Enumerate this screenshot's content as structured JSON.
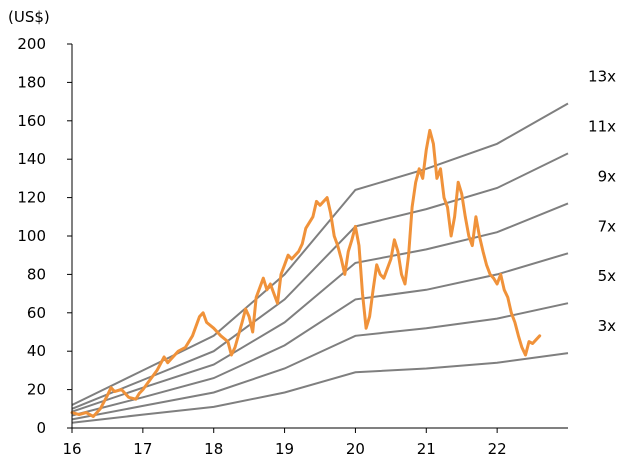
{
  "chart_data": {
    "type": "line",
    "title": "",
    "ylabel": "(US$)",
    "xlabel": "",
    "xlim": [
      16,
      23
    ],
    "ylim": [
      0,
      200
    ],
    "x_ticks": [
      "16",
      "17",
      "18",
      "19",
      "20",
      "21",
      "22"
    ],
    "y_ticks": [
      "0",
      "20",
      "40",
      "60",
      "80",
      "100",
      "120",
      "140",
      "160",
      "180",
      "200"
    ],
    "grid": false,
    "legend": "none",
    "colors": {
      "price": "#f0923a",
      "band": "#7f7f7f"
    },
    "bands": [
      {
        "name": "13x",
        "x": [
          16,
          17,
          18,
          19,
          20,
          21,
          22,
          23
        ],
        "values": [
          12,
          30,
          48,
          80,
          124,
          135,
          148,
          169
        ]
      },
      {
        "name": "11x",
        "x": [
          16,
          17,
          18,
          19,
          20,
          21,
          22,
          23
        ],
        "values": [
          10,
          25,
          40,
          67,
          105,
          114,
          125,
          143
        ]
      },
      {
        "name": "9x",
        "x": [
          16,
          17,
          18,
          19,
          20,
          21,
          22,
          23
        ],
        "values": [
          8.5,
          21,
          33,
          55,
          86,
          93,
          102,
          117
        ]
      },
      {
        "name": "7x",
        "x": [
          16,
          17,
          18,
          19,
          20,
          21,
          22,
          23
        ],
        "values": [
          6.5,
          16,
          26,
          43,
          67,
          72,
          80,
          91
        ]
      },
      {
        "name": "5x",
        "x": [
          16,
          17,
          18,
          19,
          20,
          21,
          22,
          23
        ],
        "values": [
          4.5,
          11.5,
          18.5,
          31,
          48,
          52,
          57,
          65
        ]
      },
      {
        "name": "3x",
        "x": [
          16,
          17,
          18,
          19,
          20,
          21,
          22,
          23
        ],
        "values": [
          2.7,
          7,
          11,
          18.5,
          29,
          31,
          34,
          39
        ]
      }
    ],
    "series": [
      {
        "x": [
          16.0,
          16.1,
          16.2,
          16.3,
          16.4,
          16.5,
          16.55,
          16.6,
          16.7,
          16.8,
          16.9,
          16.95,
          17.0,
          17.1,
          17.2,
          17.3,
          17.35,
          17.4,
          17.5,
          17.6,
          17.7,
          17.8,
          17.85,
          17.9,
          18.0,
          18.1,
          18.2,
          18.25,
          18.3,
          18.4,
          18.45,
          18.5,
          18.55,
          18.6,
          18.7,
          18.75,
          18.8,
          18.85,
          18.9,
          18.95,
          19.0,
          19.05,
          19.1,
          19.2,
          19.25,
          19.3,
          19.4,
          19.45,
          19.5,
          19.6,
          19.65,
          19.7,
          19.75,
          19.8,
          19.85,
          19.9,
          19.95,
          20.0,
          20.05,
          20.1,
          20.15,
          20.2,
          20.25,
          20.3,
          20.35,
          20.4,
          20.5,
          20.55,
          20.6,
          20.65,
          20.7,
          20.75,
          20.8,
          20.85,
          20.9,
          20.95,
          21.0,
          21.05,
          21.1,
          21.15,
          21.2,
          21.25,
          21.3,
          21.35,
          21.4,
          21.45,
          21.5,
          21.55,
          21.6,
          21.65,
          21.7,
          21.75,
          21.8,
          21.85,
          21.9,
          21.95,
          22.0,
          22.05,
          22.1,
          22.15,
          22.2,
          22.25,
          22.3,
          22.35,
          22.4,
          22.45,
          22.5,
          22.55,
          22.6
        ],
        "values": [
          8,
          7,
          8,
          6,
          10,
          17,
          21,
          19,
          20,
          16,
          15,
          18,
          20,
          25,
          30,
          37,
          34,
          36,
          40,
          42,
          48,
          58,
          60,
          55,
          52,
          48,
          45,
          38,
          42,
          55,
          62,
          58,
          50,
          68,
          78,
          72,
          75,
          70,
          65,
          80,
          85,
          90,
          88,
          92,
          96,
          104,
          110,
          118,
          116,
          120,
          112,
          100,
          95,
          88,
          80,
          92,
          98,
          105,
          95,
          70,
          52,
          58,
          72,
          85,
          80,
          78,
          88,
          98,
          92,
          80,
          75,
          90,
          115,
          128,
          135,
          130,
          145,
          155,
          148,
          130,
          135,
          120,
          115,
          100,
          110,
          128,
          122,
          110,
          100,
          95,
          110,
          100,
          92,
          85,
          80,
          78,
          75,
          80,
          72,
          68,
          60,
          55,
          48,
          42,
          38,
          45,
          44,
          46,
          48
        ]
      }
    ]
  }
}
